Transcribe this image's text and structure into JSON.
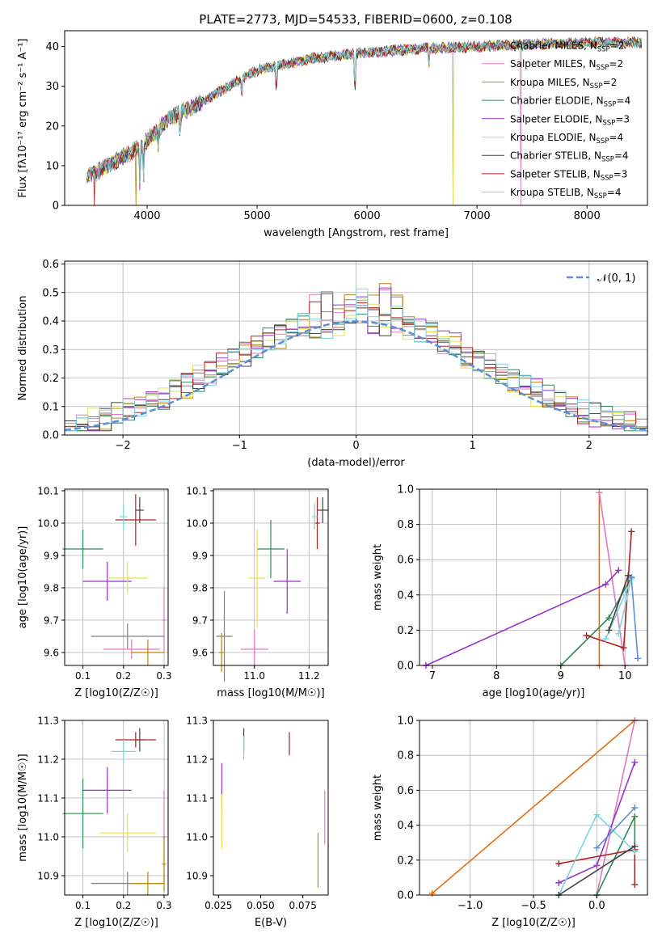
{
  "figure": {
    "title": "PLATE=2773, MJD=54533, FIBERID=0600, z=0.108"
  },
  "colors": {
    "models": [
      "#808080",
      "#e377c2",
      "#b8860b",
      "#2e8b57",
      "#9932cc",
      "#e2e24a",
      "#404040",
      "#b22222",
      "#7fd3e0"
    ],
    "normal_curve": "#5b8fd6",
    "extra_lines": [
      "#1f77b4",
      "#ff7f0e",
      "#2ca02c",
      "#d62728",
      "#9467bd",
      "#8c564b",
      "#17becf",
      "#bcbd22"
    ]
  },
  "chart_data": [
    {
      "id": "spectrum",
      "type": "line",
      "xlabel": "wavelength [Angstrom, rest frame]",
      "ylabel": "Flux [fλ10⁻¹⁷ erg cm⁻² s⁻¹ A⁻¹]",
      "xlim": [
        3250,
        8550
      ],
      "ylim": [
        0,
        44
      ],
      "xticks": [
        4000,
        5000,
        6000,
        7000,
        8000
      ],
      "yticks": [
        0,
        10,
        20,
        30,
        40
      ],
      "grid": false,
      "legend_position": "upper-right",
      "x_start": 3450,
      "x_end": 8500,
      "continuum_knots": [
        [
          3450,
          7
        ],
        [
          3700,
          11
        ],
        [
          3950,
          15
        ],
        [
          4200,
          22
        ],
        [
          4500,
          26
        ],
        [
          4800,
          31
        ],
        [
          5000,
          34
        ],
        [
          5500,
          37
        ],
        [
          6000,
          38.5
        ],
        [
          6500,
          39.5
        ],
        [
          7000,
          40
        ],
        [
          7500,
          40.5
        ],
        [
          8000,
          41
        ],
        [
          8500,
          41
        ]
      ],
      "absorption_features": [
        [
          3934,
          9
        ],
        [
          3968,
          8
        ],
        [
          4101,
          4
        ],
        [
          4300,
          5
        ],
        [
          4861,
          5
        ],
        [
          5175,
          6
        ],
        [
          5890,
          10
        ],
        [
          6563,
          4
        ]
      ],
      "series": [
        {
          "name": "Chabrier MILES, N$_{SSP}$=2",
          "drop_at": null
        },
        {
          "name": "Salpeter MILES, N$_{SSP}$=2",
          "drop_at": 7400
        },
        {
          "name": "Kroupa MILES, N$_{SSP}$=2",
          "drop_at": 3900
        },
        {
          "name": "Chabrier ELODIE, N$_{SSP}$=4",
          "drop_at": 6780
        },
        {
          "name": "Salpeter ELODIE, N$_{SSP}$=3",
          "drop_at": null
        },
        {
          "name": "Kroupa ELODIE, N$_{SSP}$=4",
          "drop_at": 6780
        },
        {
          "name": "Chabrier STELIB, N$_{SSP}$=4",
          "drop_at": null
        },
        {
          "name": "Salpeter STELIB, N$_{SSP}$=3",
          "drop_at": 3520
        },
        {
          "name": "Kroupa STELIB, N$_{SSP}$=4",
          "drop_at": null
        }
      ]
    },
    {
      "id": "residuals",
      "type": "area",
      "xlabel": "(data-model)/error",
      "ylabel": "Normed distribution",
      "xlim": [
        -2.5,
        2.5
      ],
      "ylim": [
        0,
        0.61
      ],
      "xticks": [
        -2,
        -1,
        0,
        1,
        2
      ],
      "yticks": [
        0.0,
        0.1,
        0.2,
        0.3,
        0.4,
        0.5,
        0.6
      ],
      "grid": true,
      "legend_position": "upper-right",
      "bin_width": 0.1,
      "normal_label": "$\\mathcal{N}(0,1)$",
      "hist_offsets": [
        0.0,
        0.02,
        -0.015,
        0.01,
        -0.02,
        0.03,
        -0.01,
        0.025,
        -0.005
      ]
    },
    {
      "id": "age_vs_Z",
      "type": "scatter",
      "xlabel": "Z [log10(Z/Z☉)]",
      "ylabel": "age  [log10(age/yr)]",
      "xlim": [
        0.055,
        0.31
      ],
      "ylim": [
        9.56,
        10.105
      ],
      "xticks": [
        0.1,
        0.2,
        0.3
      ],
      "yticks": [
        9.6,
        9.7,
        9.8,
        9.9,
        10.0,
        10.1
      ],
      "grid": true,
      "points": [
        {
          "x": 0.24,
          "y": 10.04,
          "xerr": 0.01,
          "yerr": 0.04
        },
        {
          "x": 0.23,
          "y": 10.01,
          "xerr": 0.05,
          "yerr": 0.08
        },
        {
          "x": 0.2,
          "y": 10.02,
          "xerr": 0.01,
          "yerr": 0.04
        },
        {
          "x": 0.1,
          "y": 9.92,
          "xerr": 0.05,
          "yerr": 0.06
        },
        {
          "x": 0.16,
          "y": 9.82,
          "xerr": 0.06,
          "yerr": 0.06
        },
        {
          "x": 0.21,
          "y": 9.83,
          "xerr": 0.05,
          "yerr": 0.05
        },
        {
          "x": 0.3,
          "y": 9.7,
          "xerr": 0.005,
          "yerr": 0.1
        },
        {
          "x": 0.21,
          "y": 9.65,
          "xerr": 0.09,
          "yerr": 0.04
        },
        {
          "x": 0.22,
          "y": 9.61,
          "xerr": 0.07,
          "yerr": 0.03
        },
        {
          "x": 0.26,
          "y": 9.6,
          "xerr": 0.04,
          "yerr": 0.04
        }
      ]
    },
    {
      "id": "age_vs_mass",
      "type": "scatter",
      "xlabel": "mass [log10(M/M☉)]",
      "ylabel": "",
      "xlim": [
        10.85,
        11.27
      ],
      "ylim": [
        9.56,
        10.105
      ],
      "xticks": [
        11.0,
        11.2
      ],
      "yticks": [
        9.6,
        9.7,
        9.8,
        9.9,
        10.0,
        10.1
      ],
      "grid": true,
      "points": [
        {
          "x": 11.25,
          "y": 10.04,
          "xerr": 0.02,
          "yerr": 0.04
        },
        {
          "x": 11.23,
          "y": 10.0,
          "xerr": 0.01,
          "yerr": 0.08
        },
        {
          "x": 11.22,
          "y": 10.02,
          "xerr": 0.01,
          "yerr": 0.04
        },
        {
          "x": 11.06,
          "y": 9.92,
          "xerr": 0.05,
          "yerr": 0.09
        },
        {
          "x": 11.12,
          "y": 9.82,
          "xerr": 0.05,
          "yerr": 0.1
        },
        {
          "x": 11.01,
          "y": 9.83,
          "xerr": 0.03,
          "yerr": 0.15
        },
        {
          "x": 11.0,
          "y": 9.61,
          "xerr": 0.05,
          "yerr": 0.06
        },
        {
          "x": 10.89,
          "y": 9.65,
          "xerr": 0.03,
          "yerr": 0.14
        },
        {
          "x": 10.88,
          "y": 9.6,
          "xerr": 0.01,
          "yerr": 0.06
        }
      ]
    },
    {
      "id": "massweight_vs_age",
      "type": "line",
      "xlabel": "age  [log10(age/yr)]",
      "ylabel": "mass weight",
      "xlim": [
        6.8,
        10.35
      ],
      "ylim": [
        0,
        1
      ],
      "xticks": [
        7,
        8,
        9,
        10
      ],
      "yticks": [
        0.0,
        0.2,
        0.4,
        0.6,
        0.8,
        1.0
      ],
      "grid": true,
      "series": [
        {
          "points": [
            [
              9.6,
              0.98
            ],
            [
              9.6,
              0.0
            ]
          ]
        },
        {
          "points": [
            [
              9.6,
              0.98
            ],
            [
              10.0,
              0.0
            ]
          ]
        },
        {
          "points": [
            [
              6.9,
              0.0
            ],
            [
              9.7,
              0.46
            ],
            [
              9.9,
              0.54
            ]
          ]
        },
        {
          "points": [
            [
              9.0,
              0.0
            ],
            [
              9.75,
              0.27
            ],
            [
              10.1,
              0.5
            ]
          ]
        },
        {
          "points": [
            [
              9.4,
              0.17
            ],
            [
              9.98,
              0.1
            ],
            [
              10.1,
              0.76
            ]
          ]
        },
        {
          "points": [
            [
              9.7,
              0.15
            ],
            [
              10.1,
              0.49
            ],
            [
              9.9,
              0.18
            ]
          ]
        },
        {
          "points": [
            [
              10.1,
              0.5
            ],
            [
              10.2,
              0.04
            ]
          ]
        },
        {
          "points": [
            [
              9.75,
              0.2
            ],
            [
              10.05,
              0.51
            ]
          ]
        }
      ]
    },
    {
      "id": "mass_vs_Z",
      "type": "scatter",
      "xlabel": "Z [log10(Z/Z☉)]",
      "ylabel": "mass [log10(M/M☉)]",
      "xlim": [
        0.055,
        0.31
      ],
      "ylim": [
        10.85,
        11.3
      ],
      "xticks": [
        0.1,
        0.2,
        0.3
      ],
      "yticks": [
        10.9,
        11.0,
        11.1,
        11.2,
        11.3
      ],
      "grid": true,
      "points": [
        {
          "x": 0.24,
          "y": 11.25,
          "xerr": 0.01,
          "yerr": 0.03
        },
        {
          "x": 0.23,
          "y": 11.25,
          "xerr": 0.05,
          "yerr": 0.02
        },
        {
          "x": 0.2,
          "y": 11.22,
          "xerr": 0.03,
          "yerr": 0.03
        },
        {
          "x": 0.1,
          "y": 11.06,
          "xerr": 0.05,
          "yerr": 0.09
        },
        {
          "x": 0.16,
          "y": 11.12,
          "xerr": 0.06,
          "yerr": 0.06
        },
        {
          "x": 0.21,
          "y": 11.01,
          "xerr": 0.07,
          "yerr": 0.05
        },
        {
          "x": 0.3,
          "y": 11.0,
          "xerr": 0.005,
          "yerr": 0.12
        },
        {
          "x": 0.21,
          "y": 10.88,
          "xerr": 0.09,
          "yerr": 0.03
        },
        {
          "x": 0.26,
          "y": 10.88,
          "xerr": 0.04,
          "yerr": 0.03
        },
        {
          "x": 0.3,
          "y": 10.93,
          "xerr": 0.005,
          "yerr": 0.07
        }
      ]
    },
    {
      "id": "mass_vs_ebv",
      "type": "scatter",
      "xlabel": "E(B-V)",
      "ylabel": "",
      "xlim": [
        0.022,
        0.09
      ],
      "ylim": [
        10.85,
        11.3
      ],
      "xticks": [
        0.025,
        0.05,
        0.075
      ],
      "yticks": [
        10.9,
        11.0,
        11.1,
        11.2,
        11.3
      ],
      "grid": false,
      "points": [
        {
          "x": 0.04,
          "y": 11.25,
          "xerr": 0,
          "yerr": 0.03
        },
        {
          "x": 0.067,
          "y": 11.24,
          "xerr": 0,
          "yerr": 0.03
        },
        {
          "x": 0.04,
          "y": 11.23,
          "xerr": 0,
          "yerr": 0.03
        },
        {
          "x": 0.027,
          "y": 11.13,
          "xerr": 0,
          "yerr": 0.06
        },
        {
          "x": 0.027,
          "y": 11.04,
          "xerr": 0,
          "yerr": 0.07
        },
        {
          "x": 0.088,
          "y": 11.05,
          "xerr": 0,
          "yerr": 0.07
        },
        {
          "x": 0.084,
          "y": 10.94,
          "xerr": 0,
          "yerr": 0.07
        }
      ]
    },
    {
      "id": "massweight_vs_Z",
      "type": "line",
      "xlabel": "Z [log10(Z/Z☉)]",
      "ylabel": "mass weight",
      "xlim": [
        -1.4,
        0.4
      ],
      "ylim": [
        0,
        1
      ],
      "xticks": [
        -1.0,
        -0.5,
        0.0
      ],
      "yticks": [
        0.0,
        0.2,
        0.4,
        0.6,
        0.8,
        1.0
      ],
      "grid": true,
      "series": [
        {
          "points": [
            [
              -1.3,
              0.01
            ],
            [
              0.3,
              1.0
            ]
          ]
        },
        {
          "points": [
            [
              0.0,
              0.0
            ],
            [
              0.3,
              1.0
            ]
          ]
        },
        {
          "points": [
            [
              -0.3,
              0.07
            ],
            [
              0.0,
              0.17
            ],
            [
              0.3,
              0.76
            ]
          ]
        },
        {
          "points": [
            [
              0.0,
              0.0
            ],
            [
              0.3,
              0.45
            ],
            [
              0.3,
              0.25
            ]
          ]
        },
        {
          "points": [
            [
              -0.3,
              0.18
            ],
            [
              0.3,
              0.26
            ],
            [
              0.3,
              0.06
            ]
          ]
        },
        {
          "points": [
            [
              -0.3,
              0.0
            ],
            [
              0.0,
              0.46
            ],
            [
              0.3,
              0.25
            ]
          ]
        },
        {
          "points": [
            [
              0.0,
              0.27
            ],
            [
              0.3,
              0.5
            ]
          ]
        },
        {
          "points": [
            [
              -0.3,
              0.0
            ],
            [
              0.3,
              0.28
            ]
          ]
        }
      ]
    }
  ]
}
